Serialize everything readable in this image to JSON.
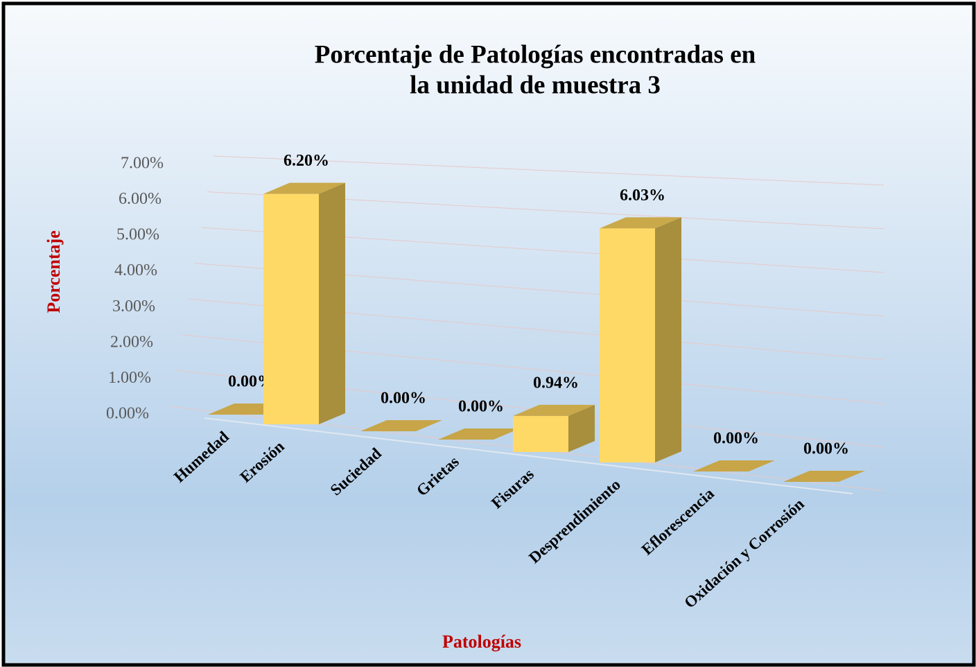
{
  "chart_data": {
    "type": "bar3d",
    "title": [
      "Porcentaje de Patologías encontradas en",
      "la unidad de muestra 3"
    ],
    "x_label": "Patologías",
    "y_label": "Porcentaje",
    "categories": [
      "Humedad",
      "Erosión",
      "Suciedad",
      "Grietas",
      "Fisuras",
      "Desprendimiento",
      "Eflorescencia",
      "Oxidación y Corrosión"
    ],
    "values": [
      0,
      6.2,
      0,
      0,
      0.94,
      6.03,
      0,
      0
    ],
    "value_labels": [
      "0.00%",
      "6.20%",
      "0.00%",
      "0.00%",
      "0.94%",
      "6.03%",
      "0.00%",
      "0.00%"
    ],
    "color": "#ffd966",
    "ylim": [
      0,
      7
    ],
    "yticks": [
      {
        "value": 0,
        "label": "0.00%"
      },
      {
        "value": 1,
        "label": "1.00%"
      },
      {
        "value": 2,
        "label": "2.00%"
      },
      {
        "value": 3,
        "label": "3.00%"
      },
      {
        "value": 4,
        "label": "4.00%"
      },
      {
        "value": 5,
        "label": "5.00%"
      },
      {
        "value": 6,
        "label": "6.00%"
      },
      {
        "value": 7,
        "label": "7.00%"
      }
    ],
    "grid": true
  }
}
